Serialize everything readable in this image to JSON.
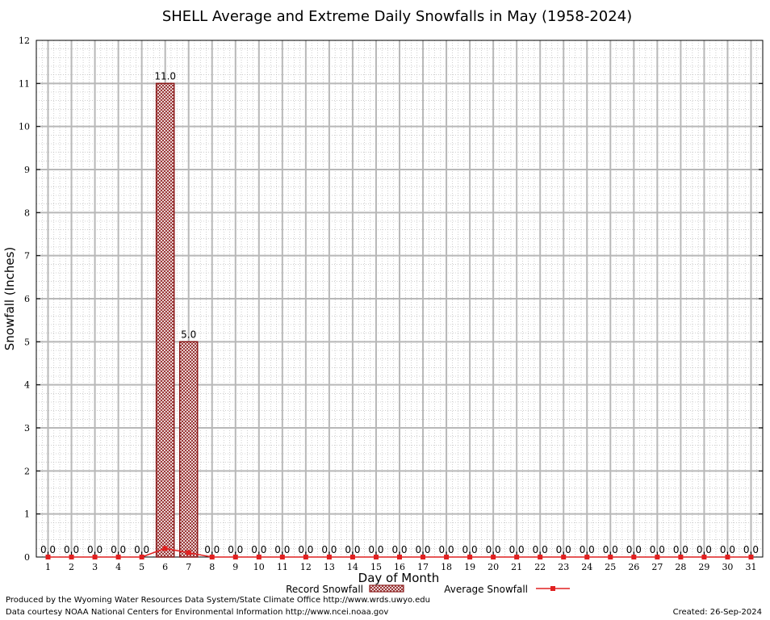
{
  "chart_data": {
    "type": "bar",
    "title": "SHELL Average and Extreme Daily Snowfalls in May (1958-2024)",
    "xlabel": "Day of Month",
    "ylabel": "Snowfall (Inches)",
    "ylim": [
      0,
      12
    ],
    "yticks": [
      "0",
      "1",
      "2",
      "3",
      "4",
      "5",
      "6",
      "7",
      "8",
      "9",
      "10",
      "11",
      "12"
    ],
    "grid": true,
    "legend_position": "bottom",
    "categories": [
      "1",
      "2",
      "3",
      "4",
      "5",
      "6",
      "7",
      "8",
      "9",
      "10",
      "11",
      "12",
      "13",
      "14",
      "15",
      "16",
      "17",
      "18",
      "19",
      "20",
      "21",
      "22",
      "23",
      "24",
      "25",
      "26",
      "27",
      "28",
      "29",
      "30",
      "31"
    ],
    "series": [
      {
        "name": "Record Snowfall",
        "kind": "bar",
        "color": "#8b1a1a",
        "values": [
          0,
          0,
          0,
          0,
          0,
          11.0,
          5.0,
          0,
          0,
          0,
          0,
          0,
          0,
          0,
          0,
          0,
          0,
          0,
          0,
          0,
          0,
          0,
          0,
          0,
          0,
          0,
          0,
          0,
          0,
          0,
          0
        ],
        "labels": [
          "0.0",
          "0.0",
          "0.0",
          "0.0",
          "0.0",
          "11.0",
          "5.0",
          "0.0",
          "0.0",
          "0.0",
          "0.0",
          "0.0",
          "0.0",
          "0.0",
          "0.0",
          "0.0",
          "0.0",
          "0.0",
          "0.0",
          "0.0",
          "0.0",
          "0.0",
          "0.0",
          "0.0",
          "0.0",
          "0.0",
          "0.0",
          "0.0",
          "0.0",
          "0.0",
          "0.0"
        ]
      },
      {
        "name": "Average Snowfall",
        "kind": "line",
        "color": "#e02020",
        "values": [
          0,
          0,
          0,
          0,
          0,
          0.2,
          0.1,
          0,
          0,
          0,
          0,
          0,
          0,
          0,
          0,
          0,
          0,
          0,
          0,
          0,
          0,
          0,
          0,
          0,
          0,
          0,
          0,
          0,
          0,
          0,
          0
        ]
      }
    ]
  },
  "footer": {
    "produced_by": "Produced by the Wyoming Water Resources Data System/State Climate Office http://www.wrds.uwyo.edu",
    "data_courtesy": "Data courtesy NOAA National Centers for Environmental Information http://www.ncei.noaa.gov",
    "created": "Created: 26-Sep-2024"
  }
}
